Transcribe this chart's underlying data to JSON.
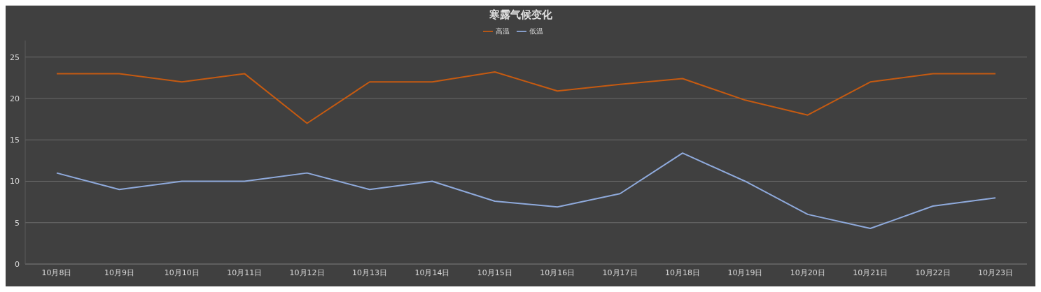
{
  "chart_data": {
    "type": "line",
    "title": "寒露气候变化",
    "categories": [
      "10月8日",
      "10月9日",
      "10月10日",
      "10月11日",
      "10月12日",
      "10月13日",
      "10月14日",
      "10月15日",
      "10月16日",
      "10月17日",
      "10月18日",
      "10月19日",
      "10月20日",
      "10月21日",
      "10月22日",
      "10月23日"
    ],
    "series": [
      {
        "name": "高温",
        "color": "#c55a11",
        "values": [
          23,
          23,
          22,
          23,
          17,
          22,
          22,
          23.2,
          20.9,
          21.7,
          22.4,
          19.8,
          18,
          22,
          23,
          23
        ]
      },
      {
        "name": "低温",
        "color": "#8faadc",
        "values": [
          11,
          9,
          10,
          10,
          11,
          9,
          10,
          7.6,
          6.9,
          8.5,
          13.4,
          10,
          6,
          4.3,
          7,
          8
        ]
      }
    ],
    "ylim": [
      0,
      27
    ],
    "yticks": [
      0,
      5,
      10,
      15,
      20,
      25
    ],
    "grid": "y",
    "legend": "top",
    "marker": "none",
    "line_style": "solid"
  }
}
